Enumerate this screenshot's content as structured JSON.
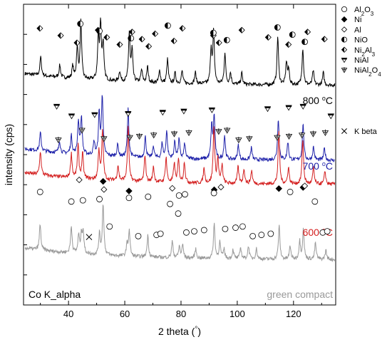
{
  "chart_data": {
    "type": "line",
    "xlabel": "2 theta (°)",
    "ylabel": "intensity (cps)",
    "xlim": [
      24,
      135
    ],
    "x_ticks": [
      40,
      60,
      80,
      100,
      120
    ],
    "y_ticks_labeled": false,
    "corner_note": "Co K_alpha",
    "series": [
      {
        "name": "800 °C",
        "color": "#000000",
        "baseline_fraction": 0.27,
        "peaks": [
          [
            30.1,
            0.33
          ],
          [
            36.9,
            0.22
          ],
          [
            41.5,
            0.22
          ],
          [
            43.1,
            0.55
          ],
          [
            44.4,
            1.0
          ],
          [
            50.6,
            0.72
          ],
          [
            51.4,
            0.95
          ],
          [
            52.3,
            0.62
          ],
          [
            58.2,
            0.18
          ],
          [
            61.6,
            0.85
          ],
          [
            62.6,
            0.55
          ],
          [
            66.0,
            0.22
          ],
          [
            68.1,
            0.28
          ],
          [
            72.4,
            0.22
          ],
          [
            75.2,
            0.42
          ],
          [
            77.9,
            0.18
          ],
          [
            80.4,
            0.22
          ],
          [
            85.1,
            0.2
          ],
          [
            90.7,
            0.6
          ],
          [
            91.6,
            0.9
          ],
          [
            95.6,
            0.55
          ],
          [
            97.6,
            0.2
          ],
          [
            101.6,
            0.2
          ],
          [
            114.4,
            0.85
          ],
          [
            117.5,
            0.4
          ],
          [
            118.3,
            0.25
          ],
          [
            123.3,
            0.65
          ],
          [
            127.0,
            0.25
          ],
          [
            130.6,
            0.22
          ]
        ]
      },
      {
        "name": "700 °C",
        "color": "#1f22aa",
        "baseline_fraction": 0.52,
        "peaks": [
          [
            30.0,
            0.3
          ],
          [
            36.8,
            0.2
          ],
          [
            41.0,
            0.3
          ],
          [
            43.5,
            0.55
          ],
          [
            44.6,
            0.62
          ],
          [
            49.1,
            0.22
          ],
          [
            50.9,
            0.7
          ],
          [
            52.0,
            1.0
          ],
          [
            57.5,
            0.2
          ],
          [
            61.2,
            0.8
          ],
          [
            67.3,
            0.35
          ],
          [
            70.2,
            0.2
          ],
          [
            73.3,
            0.25
          ],
          [
            74.9,
            0.45
          ],
          [
            77.8,
            0.28
          ],
          [
            79.3,
            0.32
          ],
          [
            81.3,
            0.25
          ],
          [
            90.9,
            0.55
          ],
          [
            91.8,
            0.72
          ],
          [
            95.5,
            0.4
          ],
          [
            100.4,
            0.25
          ],
          [
            105.0,
            0.2
          ],
          [
            114.6,
            0.7
          ],
          [
            118.0,
            0.3
          ],
          [
            123.4,
            0.6
          ],
          [
            127.1,
            0.22
          ],
          [
            131.0,
            0.2
          ]
        ]
      },
      {
        "name": "600 °C",
        "color": "#d42020",
        "baseline_fraction": 0.6,
        "peaks": [
          [
            30.0,
            0.4
          ],
          [
            41.0,
            0.4
          ],
          [
            43.4,
            0.55
          ],
          [
            45.0,
            0.42
          ],
          [
            50.8,
            0.5
          ],
          [
            52.1,
            0.82
          ],
          [
            57.6,
            0.25
          ],
          [
            61.2,
            0.9
          ],
          [
            67.2,
            0.45
          ],
          [
            70.2,
            0.25
          ],
          [
            74.7,
            0.42
          ],
          [
            77.6,
            0.32
          ],
          [
            79.1,
            0.38
          ],
          [
            81.2,
            0.35
          ],
          [
            88.2,
            0.25
          ],
          [
            91.7,
            0.95
          ],
          [
            93.1,
            0.4
          ],
          [
            94.6,
            0.3
          ],
          [
            100.3,
            0.28
          ],
          [
            102.4,
            0.25
          ],
          [
            105.1,
            0.22
          ],
          [
            114.8,
            0.88
          ],
          [
            118.2,
            0.28
          ],
          [
            123.3,
            0.75
          ],
          [
            127.1,
            0.28
          ],
          [
            131.2,
            0.22
          ]
        ]
      },
      {
        "name": "green compact",
        "color": "#999999",
        "baseline_fraction": 0.85,
        "peaks": [
          [
            29.9,
            0.5
          ],
          [
            41.0,
            0.52
          ],
          [
            43.6,
            0.35
          ],
          [
            44.6,
            0.35
          ],
          [
            45.2,
            0.42
          ],
          [
            51.0,
            0.4
          ],
          [
            52.3,
            1.0
          ],
          [
            60.8,
            0.22
          ],
          [
            61.6,
            0.5
          ],
          [
            68.2,
            0.42
          ],
          [
            76.9,
            0.32
          ],
          [
            79.4,
            0.22
          ],
          [
            80.6,
            0.25
          ],
          [
            85.2,
            0.18
          ],
          [
            91.8,
            0.68
          ],
          [
            93.8,
            0.32
          ],
          [
            95.3,
            0.18
          ],
          [
            98.5,
            0.18
          ],
          [
            101.2,
            0.22
          ],
          [
            104.0,
            0.25
          ],
          [
            106.8,
            0.2
          ],
          [
            114.9,
            0.65
          ],
          [
            118.8,
            0.25
          ],
          [
            122.2,
            0.35
          ],
          [
            123.5,
            0.58
          ],
          [
            127.8,
            0.32
          ],
          [
            131.5,
            0.18
          ]
        ]
      }
    ],
    "legend": {
      "placement": "right",
      "entries": [
        {
          "symbol": "circle-open",
          "sub": [
            [
              "Al",
              false
            ],
            [
              "2",
              true
            ],
            [
              "O",
              false
            ],
            [
              "3",
              true
            ]
          ]
        },
        {
          "symbol": "diamond-filled",
          "sub": [
            [
              "Ni",
              false
            ]
          ]
        },
        {
          "symbol": "diamond-open",
          "sub": [
            [
              "Al",
              false
            ]
          ]
        },
        {
          "symbol": "circle-half",
          "sub": [
            [
              "NiO",
              false
            ]
          ]
        },
        {
          "symbol": "diamond-half",
          "sub": [
            [
              "Ni",
              false
            ],
            [
              "2",
              true
            ],
            [
              "Al",
              false
            ],
            [
              "3",
              true
            ]
          ]
        },
        {
          "symbol": "triangle-down-bar",
          "sub": [
            [
              "NiAl",
              false
            ]
          ]
        },
        {
          "symbol": "triangle-down-cross",
          "sub": [
            [
              "NiAl",
              false
            ],
            [
              "2",
              true
            ],
            [
              "O",
              false
            ],
            [
              "4",
              true
            ]
          ]
        },
        {
          "symbol": "cross",
          "sub": [
            [
              "K beta",
              false
            ]
          ]
        }
      ]
    },
    "markers": [
      {
        "symbol": "diamond-half",
        "y": 0.11,
        "x": [
          29.8,
          37.2,
          43.0,
          50.5,
          53.6,
          58.2,
          62.6,
          66.1,
          68.5,
          70.8,
          77.5,
          80.5,
          91.5,
          93.5,
          101.6,
          111.0,
          118.2,
          125.0,
          131.0
        ]
      },
      {
        "symbol": "circle-half",
        "y": 0.095,
        "x": [
          44.2,
          51.0,
          62.2,
          75.3,
          91.5,
          96.3,
          114.3,
          119.6,
          124.0
        ]
      },
      {
        "symbol": "triangle-down-bar",
        "y": 0.355,
        "x": [
          35.8,
          41.1,
          49.3,
          61.2,
          73.5,
          81.0,
          91.0,
          110.8,
          118.3,
          123.4,
          133.3
        ]
      },
      {
        "symbol": "triangle-down-cross",
        "y": 0.435,
        "x": [
          44.8,
          36.4,
          52.6,
          61.8,
          65.2,
          70.3,
          77.6,
          82.8,
          93.4,
          96.4,
          100.5,
          104.3,
          114.2,
          118.4,
          123.0,
          127.0,
          131.3
        ]
      },
      {
        "symbol": "diamond-filled",
        "y": 0.605,
        "x": [
          52.3,
          61.5,
          91.8,
          114.8,
          123.4
        ]
      },
      {
        "symbol": "diamond-open",
        "y": 0.6,
        "x": [
          43.8,
          52.6,
          76.9,
          94.2,
          124.0
        ]
      },
      {
        "symbol": "circle-open",
        "y": 0.64,
        "x": [
          29.9,
          41.0,
          45.1,
          51.0,
          61.5,
          68.3,
          79.3,
          81.4,
          91.7,
          118.8,
          127.6
        ]
      },
      {
        "symbol": "circle-open",
        "y": 0.755,
        "x": [
          54.6,
          64.8,
          71.3,
          72.7,
          81.9,
          84.7,
          88.2,
          95.7,
          99.4,
          101.9,
          105.5,
          108.6,
          111.9,
          130.4,
          132.0
        ]
      },
      {
        "symbol": "circle-open",
        "y": 0.68,
        "x": [
          76.1,
          79.0
        ]
      },
      {
        "symbol": "cross",
        "y": 0.79,
        "x": [
          47.3
        ]
      }
    ]
  }
}
